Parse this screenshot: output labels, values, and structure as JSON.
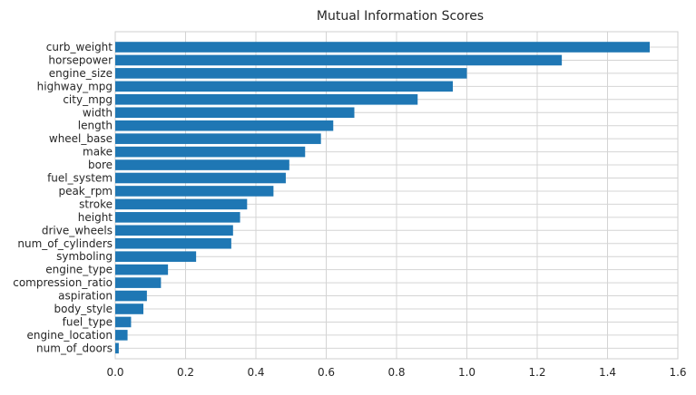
{
  "chart_data": {
    "type": "bar",
    "orientation": "horizontal",
    "title": "Mutual Information Scores",
    "xlabel": "",
    "ylabel": "",
    "xlim": [
      0,
      1.6
    ],
    "xticks": [
      "0.0",
      "0.2",
      "0.4",
      "0.6",
      "0.8",
      "1.0",
      "1.2",
      "1.4",
      "1.6"
    ],
    "grid": true,
    "bar_color": "#1f77b4",
    "categories": [
      "curb_weight",
      "horsepower",
      "engine_size",
      "highway_mpg",
      "city_mpg",
      "width",
      "length",
      "wheel_base",
      "make",
      "bore",
      "fuel_system",
      "peak_rpm",
      "stroke",
      "height",
      "drive_wheels",
      "num_of_cylinders",
      "symboling",
      "engine_type",
      "compression_ratio",
      "aspiration",
      "body_style",
      "fuel_type",
      "engine_location",
      "num_of_doors"
    ],
    "values": [
      1.52,
      1.27,
      1.0,
      0.96,
      0.86,
      0.68,
      0.62,
      0.585,
      0.54,
      0.495,
      0.485,
      0.45,
      0.375,
      0.355,
      0.335,
      0.33,
      0.23,
      0.15,
      0.13,
      0.09,
      0.08,
      0.045,
      0.035,
      0.01
    ]
  }
}
